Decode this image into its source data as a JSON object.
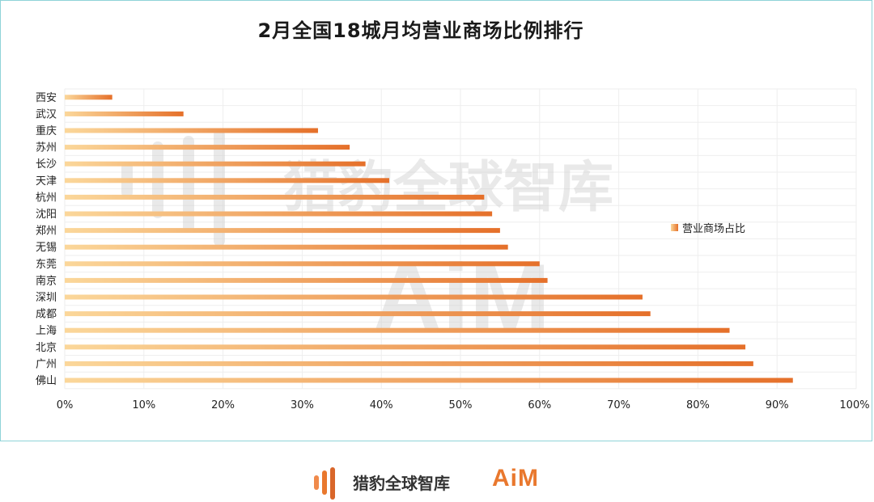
{
  "title": "2月全国18城月均营业商场比例排行",
  "watermark": {
    "brand": "猎豹全球智库",
    "logo": "AiM"
  },
  "footer": {
    "brand": "猎豹全球智库",
    "logo": "AiM"
  },
  "colors": {
    "bar_start": "#fbd79a",
    "bar_end": "#e5702a",
    "accent": "#e9782e",
    "frame": "#8fd3d8"
  },
  "chart_data": {
    "type": "bar",
    "orientation": "horizontal",
    "title": "2月全国18城月均营业商场比例排行",
    "categories": [
      "西安",
      "武汉",
      "重庆",
      "苏州",
      "长沙",
      "天津",
      "杭州",
      "沈阳",
      "郑州",
      "无锡",
      "东莞",
      "南京",
      "深圳",
      "成都",
      "上海",
      "北京",
      "广州",
      "佛山"
    ],
    "series": [
      {
        "name": "营业商场占比",
        "values": [
          0.06,
          0.15,
          0.32,
          0.36,
          0.38,
          0.41,
          0.53,
          0.54,
          0.55,
          0.56,
          0.6,
          0.61,
          0.73,
          0.74,
          0.84,
          0.86,
          0.87,
          0.92
        ]
      }
    ],
    "xlim": [
      0,
      1
    ],
    "xticks": [
      "0%",
      "10%",
      "20%",
      "30%",
      "40%",
      "50%",
      "60%",
      "70%",
      "80%",
      "90%",
      "100%"
    ],
    "grid": true,
    "legend": {
      "position": "right",
      "label": "营业商场占比"
    }
  }
}
